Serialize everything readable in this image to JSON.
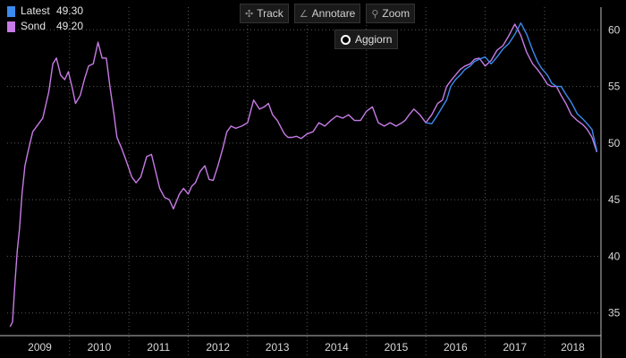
{
  "legend": {
    "items": [
      {
        "name": "Latest",
        "value": "49.30",
        "color": "#3b8bef"
      },
      {
        "name": "Sond",
        "value": "49.20",
        "color": "#c77be6"
      }
    ]
  },
  "toolbar": {
    "track_label": "Track",
    "annotate_label": "Annotare",
    "zoom_label": "Zoom",
    "refresh_label": "Aggiorn"
  },
  "chart_data": {
    "type": "line",
    "title": "",
    "xlabel": "",
    "ylabel": "",
    "x_ticks": [
      "2009",
      "2010",
      "2011",
      "2012",
      "2013",
      "2014",
      "2015",
      "2016",
      "2017",
      "2018"
    ],
    "x_range": [
      2008.95,
      2018.95
    ],
    "y_ticks": [
      35,
      40,
      45,
      50,
      55,
      60
    ],
    "ylim": [
      33,
      62
    ],
    "grid": true,
    "y_axis_side": "right",
    "series": [
      {
        "name": "Sond",
        "color": "#c77be6",
        "x": [
          2009.0,
          2009.04,
          2009.08,
          2009.12,
          2009.16,
          2009.2,
          2009.25,
          2009.3,
          2009.38,
          2009.45,
          2009.55,
          2009.65,
          2009.72,
          2009.78,
          2009.85,
          2009.92,
          2009.98,
          2010.05,
          2010.1,
          2010.18,
          2010.25,
          2010.32,
          2010.4,
          2010.48,
          2010.55,
          2010.62,
          2010.68,
          2010.75,
          2010.8,
          2010.88,
          2010.95,
          2011.05,
          2011.12,
          2011.2,
          2011.3,
          2011.38,
          2011.45,
          2011.52,
          2011.6,
          2011.68,
          2011.75,
          2011.85,
          2011.92,
          2012.0,
          2012.06,
          2012.12,
          2012.2,
          2012.28,
          2012.35,
          2012.42,
          2012.5,
          2012.58,
          2012.65,
          2012.72,
          2012.8,
          2012.9,
          2013.0,
          2013.1,
          2013.2,
          2013.28,
          2013.35,
          2013.42,
          2013.5,
          2013.58,
          2013.62,
          2013.68,
          2013.75,
          2013.82,
          2013.9,
          2014.0,
          2014.1,
          2014.2,
          2014.3,
          2014.4,
          2014.5,
          2014.6,
          2014.7,
          2014.8,
          2014.9,
          2015.0,
          2015.1,
          2015.2,
          2015.3,
          2015.4,
          2015.5,
          2015.6,
          2015.65,
          2015.72,
          2015.8,
          2015.9,
          2016.0,
          2016.1,
          2016.2,
          2016.28,
          2016.35,
          2016.42,
          2016.5,
          2016.58,
          2016.66,
          2016.75,
          2016.82,
          2016.9,
          2017.0,
          2017.1,
          2017.2,
          2017.3,
          2017.4,
          2017.5,
          2017.6,
          2017.7,
          2017.8,
          2017.88,
          2017.95,
          2018.05,
          2018.12,
          2018.2,
          2018.28,
          2018.36,
          2018.45,
          2018.55,
          2018.65,
          2018.72,
          2018.8,
          2018.88
        ],
        "y": [
          33.8,
          34.2,
          37.5,
          40.5,
          42.5,
          45.5,
          48,
          49.2,
          51,
          51.5,
          52.2,
          54.5,
          57,
          57.5,
          56,
          55.6,
          56.3,
          54.8,
          53.5,
          54.2,
          55.6,
          56.8,
          57,
          58.9,
          57.5,
          57.5,
          55,
          52.5,
          50.5,
          49.5,
          48.5,
          47,
          46.5,
          47,
          48.8,
          49,
          47.5,
          46,
          45.2,
          45,
          44.2,
          45.5,
          46,
          45.5,
          46.2,
          46.5,
          47.5,
          48,
          46.8,
          46.7,
          48,
          49.5,
          51,
          51.5,
          51.3,
          51.5,
          51.8,
          53.8,
          53,
          53.2,
          53.5,
          52.5,
          52,
          51.2,
          50.8,
          50.5,
          50.5,
          50.6,
          50.4,
          50.8,
          51,
          51.8,
          51.5,
          52,
          52.4,
          52.2,
          52.5,
          52,
          52,
          52.8,
          53.2,
          51.8,
          51.5,
          51.8,
          51.5,
          51.8,
          52,
          52.5,
          53,
          52.5,
          51.8,
          52.5,
          53.5,
          53.8,
          55,
          55.5,
          56,
          56.5,
          56.8,
          57,
          57.4,
          57.5,
          56.8,
          57.3,
          58.2,
          58.6,
          59.5,
          60.5,
          59.5,
          58,
          57,
          56.5,
          56,
          55.2,
          55,
          55,
          54.2,
          53.5,
          52.5,
          52,
          51.6,
          51.2,
          50.5,
          49.2
        ]
      },
      {
        "name": "Latest",
        "color": "#3b8bef",
        "x": [
          2016.0,
          2016.1,
          2016.2,
          2016.28,
          2016.35,
          2016.42,
          2016.5,
          2016.58,
          2016.66,
          2016.75,
          2016.82,
          2016.9,
          2017.0,
          2017.1,
          2017.2,
          2017.3,
          2017.4,
          2017.5,
          2017.6,
          2017.7,
          2017.8,
          2017.88,
          2017.95,
          2018.05,
          2018.12,
          2018.2,
          2018.28,
          2018.36,
          2018.45,
          2018.55,
          2018.65,
          2018.72,
          2018.8,
          2018.88
        ],
        "y": [
          51.8,
          51.7,
          52.5,
          53.2,
          53.8,
          55,
          55.6,
          56,
          56.5,
          56.8,
          57.2,
          57.4,
          57.6,
          57,
          57.6,
          58.3,
          58.8,
          59.6,
          60.6,
          59.6,
          58.2,
          57.2,
          56.6,
          56,
          55.3,
          55,
          55,
          54.3,
          53.6,
          52.6,
          52.1,
          51.7,
          51.2,
          49.3
        ]
      }
    ]
  }
}
